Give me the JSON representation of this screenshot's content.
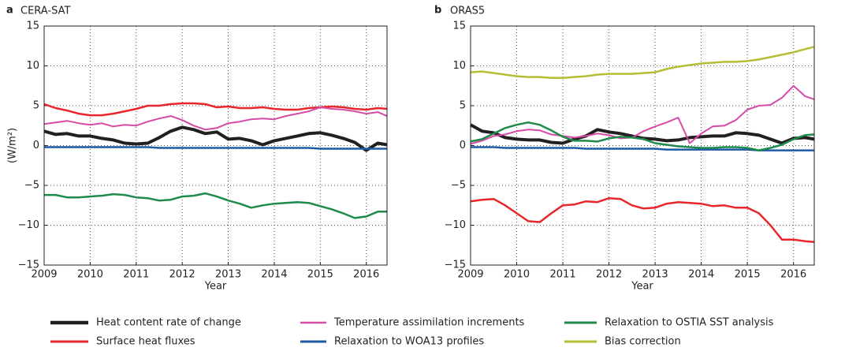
{
  "chart_data": [
    {
      "type": "line",
      "panel": "a",
      "title": "CERA-SAT",
      "y_label": "(W/m²)",
      "x_label": "Year",
      "xlim": [
        2009,
        2016.45
      ],
      "xticks": [
        2009,
        2010,
        2011,
        2012,
        2013,
        2014,
        2015,
        2016
      ],
      "ylim": [
        -15,
        15
      ],
      "yticks": [
        {
          "value": -15,
          "label": "−15"
        },
        {
          "value": -10,
          "label": "−10"
        },
        {
          "value": -5,
          "label": "−5"
        },
        0,
        5,
        10,
        15
      ],
      "grid": true,
      "x": [
        2009,
        2009.25,
        2009.5,
        2009.75,
        2010,
        2010.25,
        2010.5,
        2010.75,
        2011,
        2011.25,
        2011.5,
        2011.75,
        2012,
        2012.25,
        2012.5,
        2012.75,
        2013,
        2013.25,
        2013.5,
        2013.75,
        2014,
        2014.25,
        2014.5,
        2014.75,
        2015,
        2015.25,
        2015.5,
        2015.75,
        2016,
        2016.25,
        2016.45
      ],
      "series": [
        {
          "color": "#231f20",
          "width": 4,
          "values": [
            1.8,
            1.4,
            1.5,
            1.2,
            1.2,
            0.9,
            0.7,
            0.3,
            0.2,
            0.3,
            1.0,
            1.8,
            2.3,
            2.0,
            1.5,
            1.7,
            0.8,
            0.9,
            0.6,
            0.1,
            0.6,
            0.9,
            1.2,
            1.5,
            1.6,
            1.3,
            0.9,
            0.4,
            -0.6,
            0.3,
            0.1
          ]
        },
        {
          "color": "#e8262b",
          "width": 2.5,
          "values": [
            5.2,
            4.7,
            4.4,
            4.0,
            3.8,
            3.8,
            4.0,
            4.3,
            4.6,
            5.0,
            5.0,
            5.2,
            5.3,
            5.3,
            5.2,
            4.8,
            4.9,
            4.7,
            4.7,
            4.8,
            4.6,
            4.5,
            4.5,
            4.7,
            4.8,
            4.9,
            4.8,
            4.6,
            4.5,
            4.7,
            4.6
          ]
        },
        {
          "color": "#d64ba6",
          "width": 2,
          "values": [
            2.7,
            2.9,
            3.1,
            2.8,
            2.6,
            2.8,
            2.4,
            2.6,
            2.5,
            3.0,
            3.4,
            3.7,
            3.2,
            2.5,
            2.0,
            2.2,
            2.8,
            3.0,
            3.3,
            3.4,
            3.3,
            3.7,
            4.0,
            4.3,
            4.8,
            4.6,
            4.5,
            4.3,
            4.0,
            4.2,
            3.7
          ]
        },
        {
          "color": "#1f5aa6",
          "width": 2.5,
          "values": [
            -0.2,
            -0.2,
            -0.2,
            -0.2,
            -0.2,
            -0.2,
            -0.2,
            -0.2,
            -0.2,
            -0.2,
            -0.3,
            -0.3,
            -0.3,
            -0.3,
            -0.3,
            -0.3,
            -0.3,
            -0.3,
            -0.3,
            -0.3,
            -0.3,
            -0.3,
            -0.3,
            -0.3,
            -0.4,
            -0.4,
            -0.4,
            -0.4,
            -0.4,
            -0.4,
            -0.4
          ]
        },
        {
          "color": "#1e8a4c",
          "width": 2.5,
          "values": [
            -6.2,
            -6.2,
            -6.5,
            -6.5,
            -6.4,
            -6.3,
            -6.1,
            -6.2,
            -6.5,
            -6.6,
            -6.9,
            -6.8,
            -6.4,
            -6.3,
            -6.0,
            -6.4,
            -6.9,
            -7.3,
            -7.8,
            -7.5,
            -7.3,
            -7.2,
            -7.1,
            -7.2,
            -7.6,
            -8.0,
            -8.5,
            -9.1,
            -8.9,
            -8.3,
            -8.3
          ]
        }
      ]
    },
    {
      "type": "line",
      "panel": "b",
      "title": "ORAS5",
      "x_label": "Year",
      "xlim": [
        2009,
        2016.45
      ],
      "xticks": [
        2009,
        2010,
        2011,
        2012,
        2013,
        2014,
        2015,
        2016
      ],
      "ylim": [
        -15,
        15
      ],
      "yticks": [
        {
          "value": -15,
          "label": "−15"
        },
        {
          "value": -10,
          "label": "−10"
        },
        {
          "value": -5,
          "label": "−5"
        },
        0,
        5,
        10,
        15
      ],
      "grid": true,
      "x": [
        2009,
        2009.25,
        2009.5,
        2009.75,
        2010,
        2010.25,
        2010.5,
        2010.75,
        2011,
        2011.25,
        2011.5,
        2011.75,
        2012,
        2012.25,
        2012.5,
        2012.75,
        2013,
        2013.25,
        2013.5,
        2013.75,
        2014,
        2014.25,
        2014.5,
        2014.75,
        2015,
        2015.25,
        2015.5,
        2015.75,
        2016,
        2016.25,
        2016.45
      ],
      "series": [
        {
          "name": "Heat content rate of change",
          "color": "#231f20",
          "width": 4,
          "values": [
            2.6,
            1.8,
            1.6,
            1.0,
            0.8,
            0.7,
            0.7,
            0.4,
            0.3,
            0.8,
            1.2,
            2.0,
            1.7,
            1.5,
            1.2,
            0.9,
            0.8,
            0.6,
            0.7,
            1.0,
            1.1,
            1.2,
            1.2,
            1.6,
            1.5,
            1.3,
            0.8,
            0.3,
            0.9,
            1.0,
            0.8
          ]
        },
        {
          "name": "Surface heat fluxes",
          "color": "#e8262b",
          "width": 2.5,
          "values": [
            -7.0,
            -6.8,
            -6.7,
            -7.5,
            -8.5,
            -9.5,
            -9.6,
            -8.5,
            -7.5,
            -7.4,
            -7.0,
            -7.1,
            -6.6,
            -6.7,
            -7.5,
            -7.9,
            -7.8,
            -7.3,
            -7.1,
            -7.2,
            -7.3,
            -7.6,
            -7.5,
            -7.8,
            -7.8,
            -8.5,
            -10.0,
            -11.8,
            -11.8,
            -12.0,
            -12.1
          ]
        },
        {
          "name": "Temperature assimilation increments",
          "color": "#d64ba6",
          "width": 2,
          "values": [
            0.2,
            0.6,
            1.2,
            1.4,
            1.8,
            2.0,
            1.9,
            1.4,
            1.2,
            1.0,
            1.2,
            1.5,
            1.3,
            0.9,
            1.0,
            1.8,
            2.4,
            2.9,
            3.5,
            0.3,
            1.5,
            2.4,
            2.5,
            3.2,
            4.5,
            5.0,
            5.1,
            6.0,
            7.5,
            6.2,
            5.8
          ]
        },
        {
          "name": "Relaxation to WOA13 profiles",
          "color": "#1f5aa6",
          "width": 2.5,
          "values": [
            -0.2,
            -0.2,
            -0.2,
            -0.3,
            -0.3,
            -0.3,
            -0.3,
            -0.3,
            -0.3,
            -0.3,
            -0.4,
            -0.4,
            -0.4,
            -0.4,
            -0.4,
            -0.4,
            -0.4,
            -0.5,
            -0.5,
            -0.5,
            -0.5,
            -0.5,
            -0.5,
            -0.5,
            -0.5,
            -0.6,
            -0.6,
            -0.6,
            -0.6,
            -0.6,
            -0.6
          ]
        },
        {
          "name": "Relaxation to OSTIA SST analysis",
          "color": "#1e8a4c",
          "width": 2.5,
          "values": [
            0.5,
            0.8,
            1.5,
            2.2,
            2.6,
            2.9,
            2.6,
            1.9,
            1.1,
            0.6,
            0.6,
            0.5,
            0.9,
            1.1,
            1.0,
            0.8,
            0.3,
            0.1,
            -0.1,
            -0.2,
            -0.3,
            -0.3,
            -0.2,
            -0.2,
            -0.3,
            -0.6,
            -0.3,
            0.1,
            0.8,
            1.3,
            1.4
          ]
        },
        {
          "name": "Bias correction",
          "color": "#b5bd35",
          "width": 2.5,
          "values": [
            9.2,
            9.3,
            9.1,
            8.9,
            8.7,
            8.6,
            8.6,
            8.5,
            8.5,
            8.6,
            8.7,
            8.9,
            9.0,
            9.0,
            9.0,
            9.1,
            9.2,
            9.6,
            9.9,
            10.1,
            10.3,
            10.4,
            10.5,
            10.5,
            10.6,
            10.8,
            11.1,
            11.4,
            11.7,
            12.1,
            12.4
          ]
        }
      ]
    }
  ]
}
